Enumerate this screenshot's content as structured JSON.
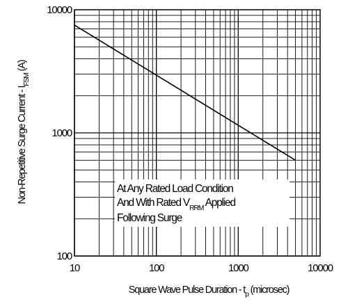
{
  "chart_data": {
    "type": "line",
    "x_scale": "log",
    "y_scale": "log",
    "xlim": [
      10,
      10000
    ],
    "ylim": [
      100,
      10000
    ],
    "grid": true,
    "legend": "none",
    "xlabel_main": "Square Wave Pulse Duration - t",
    "xlabel_sub": "p",
    "xlabel_tail": " (microsec)",
    "ylabel_main": "Non-Repetitive Surge Current - I",
    "ylabel_sub": "FSM",
    "ylabel_tail": " (A)",
    "x_ticks": [
      {
        "value": 10,
        "label": "10"
      },
      {
        "value": 100,
        "label": "100"
      },
      {
        "value": 1000,
        "label": "1000"
      },
      {
        "value": 10000,
        "label": "10000"
      }
    ],
    "y_ticks": [
      {
        "value": 100,
        "label": "100"
      },
      {
        "value": 1000,
        "label": "1000"
      },
      {
        "value": 10000,
        "label": "10000"
      }
    ],
    "series": [
      {
        "x": [
          10,
          5000
        ],
        "y": [
          7500,
          600
        ]
      }
    ],
    "annotation": {
      "line1": "At Any Rated Load Condition",
      "line2_main": "And With Rated V",
      "line2_sub": "RRM",
      "line2_tail": " Applied",
      "line3": "Following Surge"
    },
    "colors": {
      "line": "#000000",
      "grid": "#000000",
      "background": "#ffffff"
    }
  }
}
